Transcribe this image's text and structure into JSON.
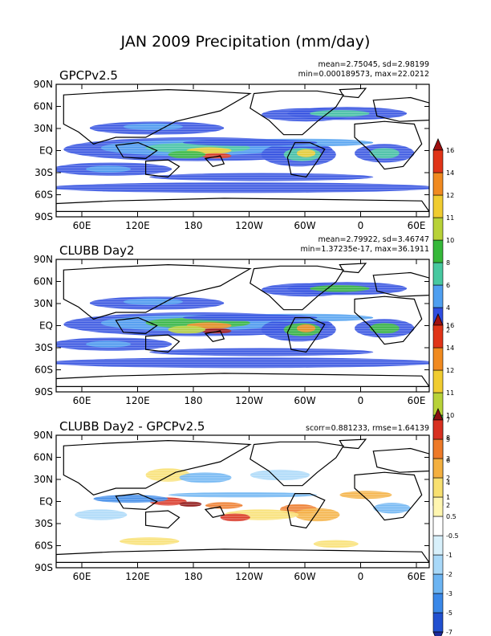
{
  "chart_data": {
    "type": "heatmap",
    "title": "JAN 2009 Precipitation (mm/day)",
    "lon_labels": [
      "60E",
      "120E",
      "180",
      "120W",
      "60W",
      "0",
      "60E"
    ],
    "lat_labels": [
      "90N",
      "60N",
      "30N",
      "EQ",
      "30S",
      "60S",
      "90S"
    ],
    "panels": [
      {
        "title": "GPCPv2.5",
        "stats": [
          "mean=2.75045, sd=2.98199",
          "min=0.000189573, max=22.0212"
        ],
        "colorbar_levels": [
          "2",
          "4",
          "6",
          "8",
          "10",
          "11",
          "12",
          "14",
          "16"
        ],
        "colors": [
          "#ffffff",
          "#2e4de0",
          "#4f9ff0",
          "#48c8a0",
          "#36b83a",
          "#b8d238",
          "#f0cc30",
          "#f08a20",
          "#e03418",
          "#a01010"
        ]
      },
      {
        "title": "CLUBB  Day2",
        "stats": [
          "mean=2.79922, sd=3.46747",
          "min=1.37235e-17, max=36.1911"
        ],
        "colorbar_levels": [
          "2",
          "4",
          "6",
          "8",
          "10",
          "11",
          "12",
          "14",
          "16"
        ],
        "colors": [
          "#ffffff",
          "#2e4de0",
          "#4f9ff0",
          "#48c8a0",
          "#36b83a",
          "#b8d238",
          "#f0cc30",
          "#f08a20",
          "#e03418",
          "#a01010"
        ]
      },
      {
        "title": "CLUBB  Day2  -  GPCPv2.5",
        "stats": [
          "scorr=0.881233, rmse=1.64139"
        ],
        "colorbar_levels": [
          "-7",
          "-5",
          "-3",
          "-2",
          "-1",
          "-0.5",
          "0.5",
          "1",
          "2",
          "3",
          "5",
          "7"
        ],
        "colors": [
          "#1c2a9c",
          "#2150d0",
          "#3a88e8",
          "#6cb4f2",
          "#a8d8f8",
          "#d8f0fb",
          "#ffffff",
          "#fff6b0",
          "#f8e070",
          "#f4b040",
          "#ee7a28",
          "#d83020",
          "#8c1010"
        ]
      }
    ]
  }
}
